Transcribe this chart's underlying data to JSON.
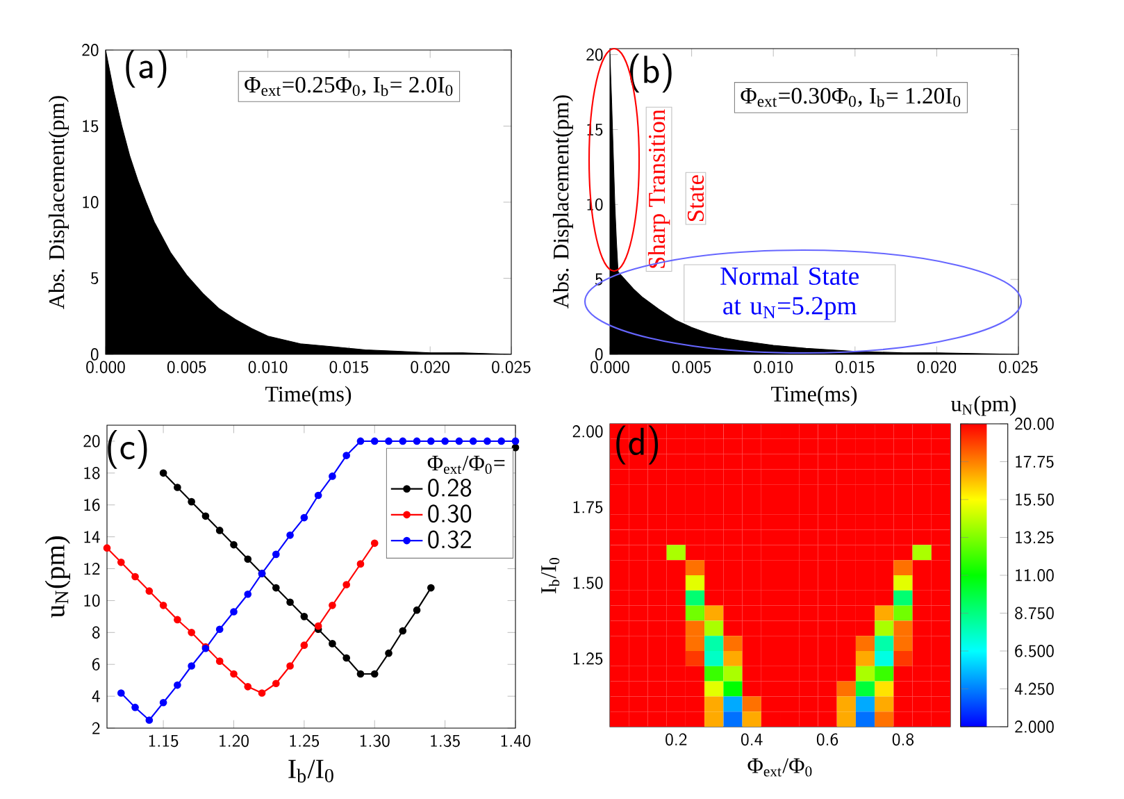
{
  "chart_data": [
    {
      "type": "area",
      "xlabel": "Time(ms)",
      "ylabel": "Abs. Displacement(pm)",
      "color": "#000000",
      "x": [
        0,
        0.0005,
        0.001,
        0.0015,
        0.002,
        0.0025,
        0.003,
        0.004,
        0.005,
        0.006,
        0.007,
        0.008,
        0.009,
        0.01,
        0.012,
        0.014,
        0.016,
        0.018,
        0.02,
        0.022,
        0.025
      ],
      "values": [
        20,
        17.3,
        15,
        13,
        11.4,
        10,
        8.7,
        6.7,
        5.2,
        4,
        3,
        2.3,
        1.7,
        1.2,
        0.7,
        0.5,
        0.3,
        0.2,
        0.1,
        0.1,
        0
      ],
      "xlim": [
        0,
        0.025
      ],
      "ylim": [
        0,
        20
      ],
      "xticks": [
        {
          "value": 0,
          "label": "0.000"
        },
        {
          "value": 0.005,
          "label": "0.005"
        },
        {
          "value": 0.01,
          "label": "0.010"
        },
        {
          "value": 0.015,
          "label": "0.015"
        },
        {
          "value": 0.02,
          "label": "0.020"
        },
        {
          "value": 0.025,
          "label": "0.025"
        }
      ],
      "yticks": [
        0,
        5,
        10,
        15,
        20
      ],
      "annotations": [
        "(a)",
        "Φ$_{ext}$=0.25Φ$_{0}$, I$_{b}$= 2.0I$_{0}$"
      ]
    },
    {
      "type": "area",
      "xlabel": "Time(ms)",
      "ylabel": "Abs. Displacement(pm)",
      "color": "#000000",
      "x": [
        0,
        0.0001,
        0.0002,
        0.0003,
        0.0004,
        0.0005,
        0.001,
        0.0015,
        0.002,
        0.003,
        0.004,
        0.005,
        0.006,
        0.007,
        0.008,
        0.01,
        0.012,
        0.015,
        0.018,
        0.02,
        0.025
      ],
      "values": [
        20,
        17,
        13.5,
        10,
        7.5,
        5.5,
        4.9,
        4.3,
        3.8,
        3,
        2.3,
        1.8,
        1.4,
        1.1,
        0.9,
        0.6,
        0.4,
        0.2,
        0.1,
        0.1,
        0
      ],
      "xlim": [
        0,
        0.025
      ],
      "ylim": [
        0,
        20.4
      ],
      "xticks": [
        {
          "value": 0,
          "label": "0.000"
        },
        {
          "value": 0.005,
          "label": "0.005"
        },
        {
          "value": 0.01,
          "label": "0.010"
        },
        {
          "value": 0.015,
          "label": "0.015"
        },
        {
          "value": 0.02,
          "label": "0.020"
        },
        {
          "value": 0.025,
          "label": "0.025"
        }
      ],
      "yticks": [
        0,
        5,
        10,
        15,
        20
      ],
      "annotations": [
        "(b)",
        "Φ$_{ext}$=0.30Φ$_{0}$, I$_{b}$= 1.20I$_{0}$",
        "Sharp Transition",
        "State",
        "Normal State at u$_{N}$=5.2pm"
      ]
    },
    {
      "type": "line",
      "xlabel": "I$_{b}$/I$_{0}$",
      "ylabel": "u$_{N}$(pm)",
      "legend_title": "Φ$_{ext}$/Φ$_{0}$=",
      "legend": "top right",
      "marker": "circle",
      "x": [
        1.11,
        1.12,
        1.13,
        1.14,
        1.15,
        1.16,
        1.17,
        1.18,
        1.19,
        1.2,
        1.21,
        1.22,
        1.23,
        1.24,
        1.25,
        1.26,
        1.27,
        1.28,
        1.29,
        1.3,
        1.31,
        1.32,
        1.33,
        1.34,
        1.35,
        1.36,
        1.37,
        1.38,
        1.39,
        1.4
      ],
      "series": [
        {
          "name": "0.28",
          "color": "#000000",
          "values": [
            null,
            null,
            null,
            null,
            18.0,
            17.1,
            16.2,
            15.3,
            14.4,
            13.5,
            12.6,
            11.7,
            10.8,
            9.9,
            9.0,
            8.2,
            7.3,
            6.4,
            5.4,
            5.4,
            6.7,
            8.1,
            9.4,
            10.8,
            null,
            null,
            null,
            null,
            null,
            19.6
          ]
        },
        {
          "name": "0.30",
          "color": "#ff0000",
          "values": [
            13.3,
            12.4,
            11.5,
            10.6,
            9.7,
            8.8,
            8.0,
            7.1,
            6.2,
            5.4,
            4.6,
            4.2,
            4.8,
            5.9,
            7.2,
            8.4,
            9.7,
            11.0,
            12.3,
            13.6,
            null,
            null,
            null,
            null,
            null,
            null,
            null,
            null,
            null,
            null
          ]
        },
        {
          "name": "0.32",
          "color": "#0000ff",
          "values": [
            null,
            4.2,
            3.3,
            2.5,
            3.6,
            4.7,
            5.9,
            7.0,
            8.2,
            9.3,
            10.4,
            11.7,
            12.9,
            14.1,
            15.2,
            16.6,
            17.8,
            19.1,
            20,
            20,
            20,
            20,
            20,
            20,
            20,
            20,
            20,
            20,
            20,
            20
          ]
        }
      ],
      "xlim": [
        1.11,
        1.4
      ],
      "ylim": [
        2,
        21
      ],
      "xticks": [
        {
          "value": 1.15,
          "label": "1.15"
        },
        {
          "value": 1.2,
          "label": "1.20"
        },
        {
          "value": 1.25,
          "label": "1.25"
        },
        {
          "value": 1.3,
          "label": "1.30"
        },
        {
          "value": 1.35,
          "label": "1.35"
        },
        {
          "value": 1.4,
          "label": "1.40"
        }
      ],
      "yticks": [
        2,
        4,
        6,
        8,
        10,
        12,
        14,
        16,
        18,
        20
      ],
      "annotations": [
        "(c)"
      ]
    },
    {
      "type": "heatmap",
      "xlabel": "Φ$_{ext}$/Φ$_{0}$",
      "ylabel": "I$_{b}$/I$_{0}$",
      "clabel": "u$_{N}$(pm)",
      "categories": [
        null,
        null,
        null,
        "0.2",
        null,
        null,
        null,
        "0.4",
        null,
        null,
        null,
        "0.6",
        null,
        null,
        null,
        "0.8",
        null,
        null
      ],
      "y_categories": [
        "2.00",
        null,
        null,
        null,
        null,
        "1.75",
        null,
        null,
        null,
        null,
        "1.50",
        null,
        null,
        null,
        null,
        "1.25",
        null,
        null,
        null,
        null
      ],
      "cells": [
        [
          20,
          20,
          20,
          20,
          20,
          20,
          20,
          20,
          20,
          20,
          20,
          20,
          20,
          20,
          20,
          20,
          20,
          20
        ],
        [
          20,
          20,
          20,
          20,
          20,
          20,
          20,
          20,
          20,
          20,
          20,
          20,
          20,
          20,
          20,
          20,
          20,
          20
        ],
        [
          20,
          20,
          20,
          20,
          20,
          20,
          20,
          20,
          20,
          20,
          20,
          20,
          20,
          20,
          20,
          20,
          20,
          20
        ],
        [
          20,
          20,
          20,
          20,
          20,
          20,
          20,
          20,
          20,
          20,
          20,
          20,
          20,
          20,
          20,
          20,
          20,
          20
        ],
        [
          20,
          20,
          20,
          20,
          20,
          20,
          20,
          20,
          20,
          20,
          20,
          20,
          20,
          20,
          20,
          20,
          20,
          20
        ],
        [
          20,
          20,
          20,
          20,
          20,
          20,
          20,
          20,
          20,
          20,
          20,
          20,
          20,
          20,
          20,
          20,
          20,
          20
        ],
        [
          20,
          20,
          20,
          20,
          20,
          20,
          20,
          20,
          20,
          20,
          20,
          20,
          20,
          20,
          20,
          20,
          20,
          20
        ],
        [
          20,
          20,
          20,
          20,
          20,
          20,
          20,
          20,
          20,
          20,
          20,
          20,
          20,
          20,
          20,
          20,
          20,
          20
        ],
        [
          20,
          20,
          20,
          14,
          20,
          20,
          20,
          20,
          20,
          20,
          20,
          20,
          20,
          20,
          20,
          20,
          14,
          20
        ],
        [
          20,
          20,
          20,
          20,
          18,
          20,
          20,
          20,
          20,
          20,
          20,
          20,
          20,
          20,
          20,
          18,
          20,
          20
        ],
        [
          20,
          20,
          20,
          20,
          15,
          20,
          20,
          20,
          20,
          20,
          20,
          20,
          20,
          20,
          20,
          15,
          20,
          20
        ],
        [
          20,
          20,
          20,
          20,
          9,
          20,
          20,
          20,
          20,
          20,
          20,
          20,
          20,
          20,
          20,
          9,
          20,
          20
        ],
        [
          20,
          20,
          20,
          20,
          13,
          17,
          20,
          20,
          20,
          20,
          20,
          20,
          20,
          20,
          17,
          13,
          20,
          20
        ],
        [
          20,
          20,
          20,
          20,
          18,
          14,
          20,
          20,
          20,
          20,
          20,
          20,
          20,
          20,
          14,
          18,
          20,
          20
        ],
        [
          20,
          20,
          20,
          20,
          18,
          8,
          18,
          20,
          20,
          20,
          20,
          20,
          20,
          18,
          8,
          18,
          20,
          20
        ],
        [
          20,
          20,
          20,
          20,
          19,
          7.5,
          17,
          20,
          20,
          20,
          20,
          20,
          20,
          17,
          7,
          19,
          20,
          20
        ],
        [
          20,
          20,
          20,
          20,
          20,
          12,
          14,
          20,
          20,
          20,
          20,
          20,
          20,
          14,
          12,
          20,
          20,
          20
        ],
        [
          20,
          20,
          20,
          20,
          20,
          15,
          11,
          20,
          20,
          20,
          20,
          20,
          18,
          10,
          16,
          20,
          20,
          20
        ],
        [
          20,
          20,
          20,
          20,
          20,
          17,
          5,
          18,
          20,
          20,
          20,
          20,
          17,
          5,
          17,
          20,
          20,
          20
        ],
        [
          20,
          20,
          20,
          20,
          20,
          17,
          4,
          17,
          20,
          20,
          20,
          20,
          17,
          4,
          18,
          20,
          20,
          20
        ]
      ],
      "clim": [
        2,
        20
      ],
      "cticks": [
        {
          "value": 2,
          "label": "2.000"
        },
        {
          "value": 4.25,
          "label": "4.250"
        },
        {
          "value": 6.5,
          "label": "6.500"
        },
        {
          "value": 8.75,
          "label": "8.750"
        },
        {
          "value": 11,
          "label": "11.00"
        },
        {
          "value": 13.25,
          "label": "13.25"
        },
        {
          "value": 15.5,
          "label": "15.50"
        },
        {
          "value": 17.75,
          "label": "17.75"
        },
        {
          "value": 20,
          "label": "20.00"
        }
      ],
      "annotations": [
        "(d)"
      ]
    }
  ]
}
